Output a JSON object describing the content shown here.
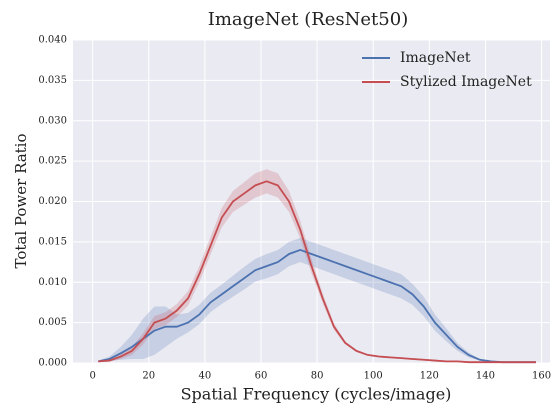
{
  "chart_data": {
    "type": "line",
    "title": "ImageNet (ResNet50)",
    "x_label": "Spatial Frequency (cycles/image)",
    "y_label": "Total Power Ratio",
    "x": [
      2,
      6,
      10,
      14,
      18,
      22,
      26,
      30,
      34,
      38,
      42,
      46,
      50,
      54,
      58,
      62,
      66,
      70,
      74,
      78,
      82,
      86,
      90,
      94,
      98,
      102,
      106,
      110,
      114,
      118,
      122,
      126,
      130,
      134,
      138,
      142,
      146,
      150,
      154,
      158
    ],
    "series": [
      {
        "name": "ImageNet",
        "color": "#4c72b0",
        "values": [
          0.0002,
          0.0005,
          0.0012,
          0.002,
          0.003,
          0.004,
          0.0045,
          0.0045,
          0.005,
          0.006,
          0.0075,
          0.0085,
          0.0095,
          0.0105,
          0.0115,
          0.012,
          0.0125,
          0.0135,
          0.014,
          0.0135,
          0.013,
          0.0125,
          0.012,
          0.0115,
          0.011,
          0.0105,
          0.01,
          0.0095,
          0.0085,
          0.007,
          0.005,
          0.0035,
          0.002,
          0.001,
          0.0004,
          0.0002,
          0.0001,
          0.0001,
          0.0001,
          0.0001
        ],
        "error": [
          0.0001,
          0.0003,
          0.0008,
          0.0015,
          0.0025,
          0.003,
          0.0025,
          0.0015,
          0.0012,
          0.0012,
          0.0012,
          0.0012,
          0.0013,
          0.0014,
          0.0014,
          0.0015,
          0.0015,
          0.0015,
          0.0015,
          0.0015,
          0.0015,
          0.0015,
          0.0015,
          0.0015,
          0.0015,
          0.0015,
          0.0015,
          0.0015,
          0.0013,
          0.0012,
          0.001,
          0.0008,
          0.0005,
          0.0003,
          0.0001,
          0.0001,
          0.0001,
          0.0001,
          0.0001,
          0.0001
        ]
      },
      {
        "name": "Stylized ImageNet",
        "color": "#c44e52",
        "values": [
          0.0002,
          0.0003,
          0.0008,
          0.0015,
          0.003,
          0.005,
          0.0055,
          0.0065,
          0.008,
          0.011,
          0.0145,
          0.018,
          0.02,
          0.021,
          0.022,
          0.0225,
          0.022,
          0.02,
          0.0165,
          0.012,
          0.008,
          0.0045,
          0.0025,
          0.0015,
          0.001,
          0.0008,
          0.0007,
          0.0006,
          0.0005,
          0.0004,
          0.0003,
          0.0002,
          0.0002,
          0.0001,
          0.0001,
          0.0001,
          0.0001,
          0.0001,
          0.0001,
          0.0001
        ],
        "error": [
          0.0001,
          0.0001,
          0.0003,
          0.0005,
          0.0007,
          0.0008,
          0.0008,
          0.0008,
          0.0009,
          0.001,
          0.0011,
          0.0012,
          0.0013,
          0.0014,
          0.0015,
          0.0015,
          0.0015,
          0.0013,
          0.0011,
          0.0009,
          0.0006,
          0.0004,
          0.0002,
          0.0001,
          0.0001,
          0.0001,
          0.0001,
          0.0001,
          0.0001,
          0.0001,
          0.0001,
          0.0001,
          0.0001,
          0.0001,
          0.0001,
          0.0001,
          0.0001,
          0.0001,
          0.0001,
          0.0001
        ]
      }
    ],
    "xlim": [
      -7,
      163
    ],
    "xticks": [
      0,
      20,
      40,
      60,
      80,
      100,
      120,
      140,
      160
    ],
    "ylim": [
      0,
      0.04
    ],
    "yticks": [
      {
        "value": 0,
        "label": "0.000"
      },
      {
        "value": 0.005,
        "label": "0.005"
      },
      {
        "value": 0.01,
        "label": "0.010"
      },
      {
        "value": 0.015,
        "label": "0.015"
      },
      {
        "value": 0.02,
        "label": "0.020"
      },
      {
        "value": 0.025,
        "label": "0.025"
      },
      {
        "value": 0.03,
        "label": "0.030"
      },
      {
        "value": 0.035,
        "label": "0.035"
      },
      {
        "value": 0.04,
        "label": "0.040"
      }
    ],
    "grid": true,
    "legend": "upper right"
  }
}
